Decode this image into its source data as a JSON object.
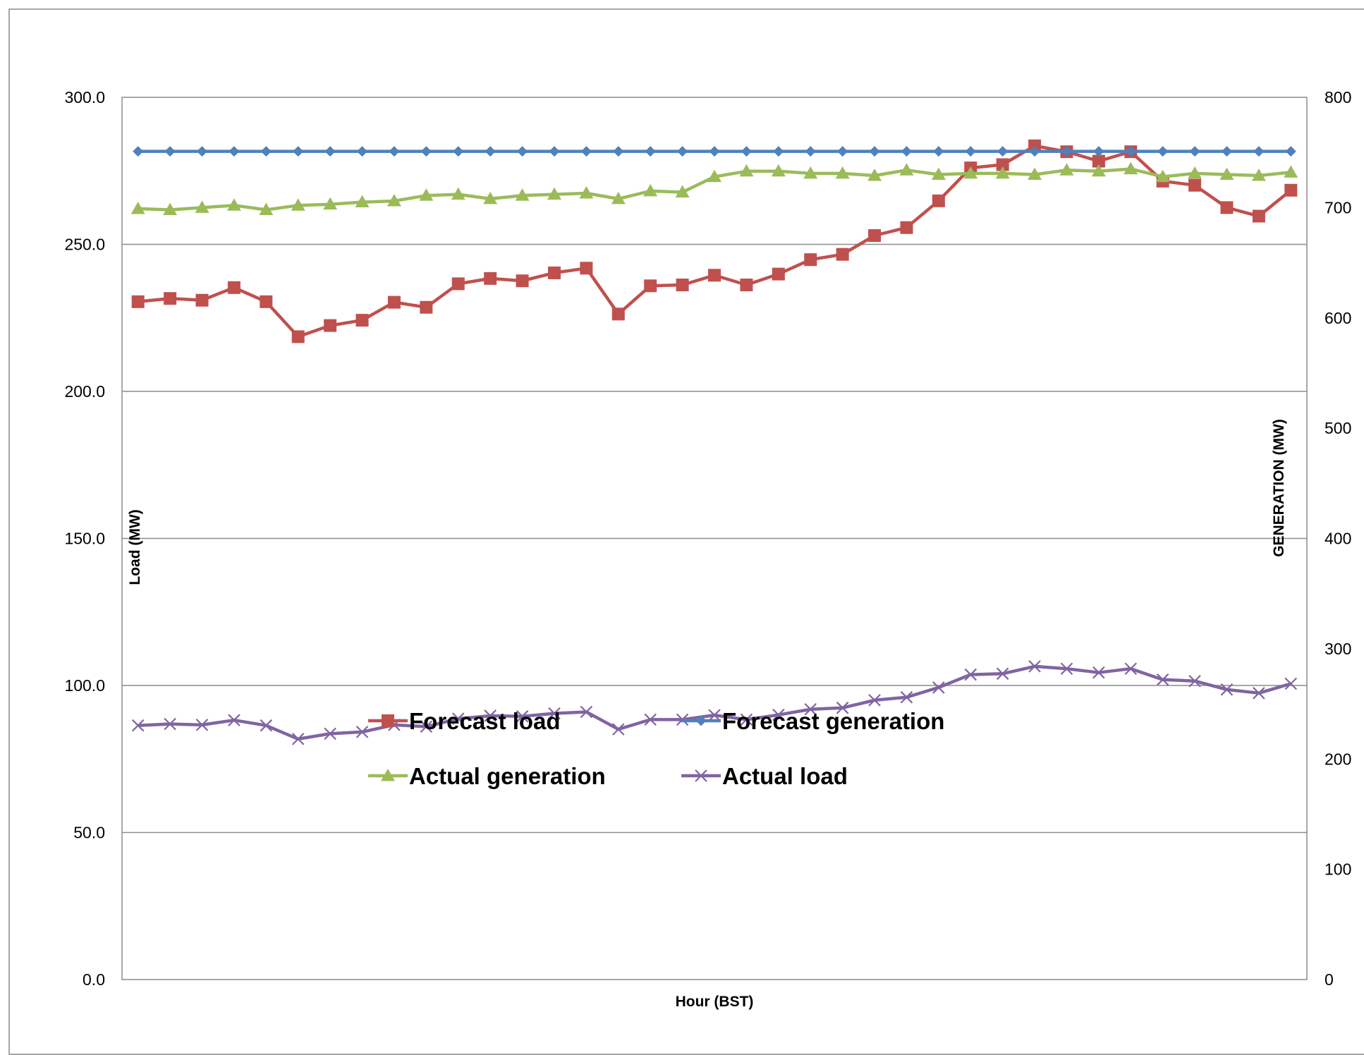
{
  "chart_data": {
    "type": "line",
    "title": "",
    "xlabel": "Hour (BST)",
    "ylabel": "Load (MW)",
    "y2label": "GENERATION (MW)",
    "ylim": [
      0,
      300
    ],
    "y2lim": [
      0,
      800
    ],
    "yticks": [
      "0.0",
      "50.0",
      "100.0",
      "150.0",
      "200.0",
      "250.0",
      "300.0"
    ],
    "y2ticks": [
      "0",
      "100",
      "200",
      "300",
      "400",
      "500",
      "600",
      "700",
      "800"
    ],
    "grid": true,
    "legend_position": "center",
    "x": [
      1,
      2,
      3,
      4,
      5,
      6,
      7,
      8,
      9,
      10,
      11,
      12,
      13,
      14,
      15,
      16,
      17,
      18,
      19,
      20,
      21,
      22,
      23,
      24,
      25,
      26,
      27,
      28,
      29,
      30,
      31,
      32,
      33,
      34,
      35,
      36,
      37
    ],
    "series": [
      {
        "name": "Forecast load",
        "axis": "left",
        "color": "#c0504d",
        "marker": "square",
        "values": [
          230.5,
          231.6,
          231.0,
          235.3,
          230.5,
          218.6,
          222.4,
          224.2,
          230.3,
          228.6,
          236.6,
          238.4,
          237.6,
          240.3,
          241.9,
          226.3,
          235.9,
          236.2,
          239.5,
          236.2,
          239.9,
          244.8,
          246.6,
          253.0,
          255.7,
          264.8,
          276.0,
          277.1,
          283.5,
          281.5,
          278.3,
          281.5,
          271.5,
          270.1,
          262.5,
          259.6,
          268.4
        ]
      },
      {
        "name": "Forecast generation",
        "axis": "right",
        "color": "#4f81bd",
        "marker": "diamond",
        "values": [
          751,
          751,
          751,
          751,
          751,
          751,
          751,
          751,
          751,
          751,
          751,
          751,
          751,
          751,
          751,
          751,
          751,
          751,
          751,
          751,
          751,
          751,
          751,
          751,
          751,
          751,
          751,
          751,
          751,
          751,
          751,
          751,
          751,
          751,
          751,
          751,
          751
        ]
      },
      {
        "name": "Actual generation",
        "axis": "right",
        "color": "#9bbb59",
        "marker": "triangle",
        "values": [
          699,
          698,
          700,
          702,
          698,
          702,
          703,
          705,
          706,
          711,
          712,
          708,
          711,
          712,
          713,
          708,
          715,
          714,
          728,
          733,
          733,
          731,
          731,
          729,
          734,
          730,
          731,
          731,
          730,
          734,
          733,
          735,
          728,
          731,
          730,
          729,
          732
        ]
      },
      {
        "name": "Actual load",
        "axis": "left",
        "color": "#8064a2",
        "marker": "x",
        "values": [
          86.4,
          86.9,
          86.6,
          88.2,
          86.4,
          81.8,
          83.6,
          84.2,
          86.6,
          86.0,
          88.7,
          89.7,
          89.5,
          90.5,
          91.0,
          85.1,
          88.4,
          88.4,
          89.9,
          88.4,
          90.0,
          91.9,
          92.4,
          95.0,
          96.0,
          99.3,
          103.7,
          104.0,
          106.5,
          105.7,
          104.4,
          105.7,
          102.0,
          101.5,
          98.6,
          97.4,
          100.6
        ]
      }
    ]
  }
}
